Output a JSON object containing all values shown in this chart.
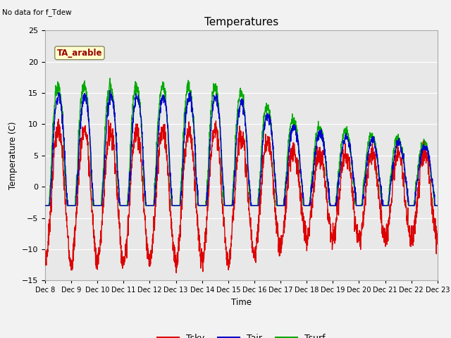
{
  "title": "Temperatures",
  "xlabel": "Time",
  "ylabel": "Temperature (C)",
  "ylim": [
    -15,
    25
  ],
  "yticks": [
    -15,
    -10,
    -5,
    0,
    5,
    10,
    15,
    20,
    25
  ],
  "bg_color": "#e8e8e8",
  "fig_color": "#f2f2f2",
  "note_text": "No data for f_Tdew",
  "annotation_text": "TA_arable",
  "annotation_color": "#990000",
  "annotation_bg": "#ffffcc",
  "tsky_color": "#dd0000",
  "tair_color": "#0000cc",
  "tsurf_color": "#00aa00",
  "n_days": 15,
  "start_day": 8
}
